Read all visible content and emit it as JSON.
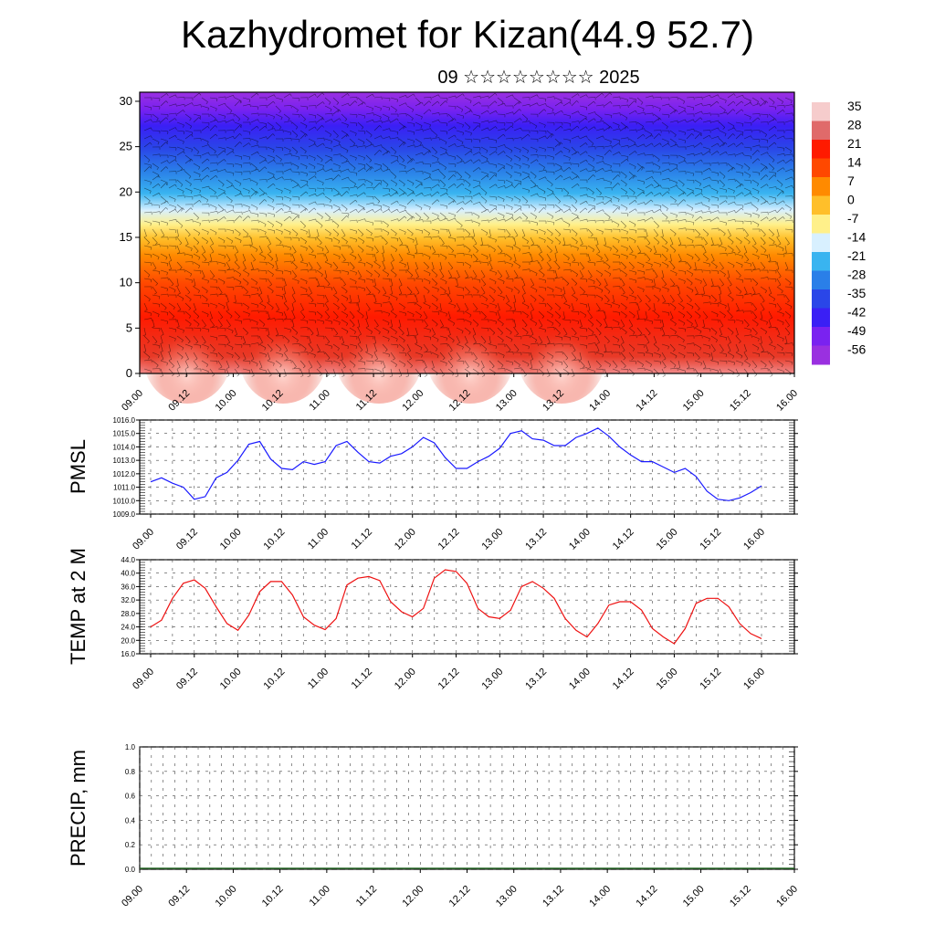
{
  "title": "Kazhydromet for Kizan(44.9 52.7)",
  "subtitle": "09 ☆☆☆☆☆☆☆☆ 2025",
  "x_tick_labels": [
    "09.00",
    "09.12",
    "10.00",
    "10.12",
    "11.00",
    "11.12",
    "12.00",
    "12.12",
    "13.00",
    "13.12",
    "14.00",
    "14.12",
    "15.00",
    "15.12",
    "16.00"
  ],
  "colorbar": {
    "labels": [
      "35",
      "28",
      "21",
      "14",
      "7",
      "0",
      "-7",
      "-14",
      "-21",
      "-28",
      "-35",
      "-42",
      "-49",
      "-56"
    ],
    "colors": [
      "#f6cccc",
      "#e06a6a",
      "#ff1a00",
      "#ff4800",
      "#ff8a00",
      "#ffbf2a",
      "#fff08a",
      "#d8f0ff",
      "#39b4f0",
      "#2a7fe8",
      "#2a46e8",
      "#3a1ff5",
      "#7a22f0",
      "#9a30e0"
    ]
  },
  "chart_data": [
    {
      "type": "heatmap",
      "title": "",
      "xlabel": "",
      "ylabel": "",
      "ylim": [
        0,
        31
      ],
      "y_ticks": [
        "0",
        "5",
        "10",
        "15",
        "20",
        "25",
        "30"
      ],
      "categories": [
        "09.00",
        "09.12",
        "10.00",
        "10.12",
        "11.00",
        "11.12",
        "12.00",
        "12.12",
        "13.00",
        "13.12",
        "14.00",
        "14.12",
        "15.00",
        "15.12",
        "16.00"
      ],
      "levels": [
        0,
        5,
        10,
        15,
        20,
        25,
        30
      ],
      "values_by_level": [
        [
          32,
          28,
          30
        ],
        [
          20,
          15,
          20
        ],
        [
          5,
          0,
          5
        ],
        [
          -10,
          -14,
          -10
        ],
        [
          -40,
          -35,
          -42
        ],
        [
          -56,
          -56,
          -56
        ],
        [
          -49,
          -49,
          -49
        ]
      ],
      "note_wind": "wind barbs overlay"
    },
    {
      "type": "line",
      "ylabel": "PMSL",
      "ylim": [
        1009.0,
        1016.0
      ],
      "y_ticks": [
        "1009.0",
        "1010.0",
        "1011.0",
        "1012.0",
        "1013.0",
        "1014.0",
        "1015.0",
        "1016.0"
      ],
      "x": [
        "09.00",
        "09.03",
        "09.06",
        "09.09",
        "09.12",
        "09.15",
        "09.18",
        "09.21",
        "10.00",
        "10.03",
        "10.06",
        "10.09",
        "10.12",
        "10.15",
        "10.18",
        "10.21",
        "11.00",
        "11.03",
        "11.06",
        "11.09",
        "11.12",
        "11.15",
        "11.18",
        "11.21",
        "12.00",
        "12.03",
        "12.06",
        "12.09",
        "12.12",
        "12.15",
        "12.18",
        "12.21",
        "13.00",
        "13.03",
        "13.06",
        "13.09",
        "13.12",
        "13.15",
        "13.18",
        "13.21",
        "14.00",
        "14.03",
        "14.06",
        "14.09",
        "14.12",
        "14.15",
        "14.18",
        "14.21",
        "15.00",
        "15.03",
        "15.06",
        "15.09",
        "15.12",
        "15.15",
        "15.18",
        "15.21",
        "16.00"
      ],
      "series": [
        {
          "color": "#1a1aff",
          "values": [
            1011.4,
            1011.7,
            1011.3,
            1011.0,
            1010.1,
            1010.3,
            1011.7,
            1012.1,
            1013.0,
            1014.2,
            1014.4,
            1013.1,
            1012.4,
            1012.3,
            1012.9,
            1012.7,
            1012.9,
            1014.1,
            1014.4,
            1013.6,
            1012.9,
            1012.8,
            1013.3,
            1013.5,
            1014.0,
            1014.7,
            1014.3,
            1013.2,
            1012.4,
            1012.4,
            1012.9,
            1013.3,
            1013.9,
            1015.0,
            1015.2,
            1014.6,
            1014.5,
            1014.1,
            1014.1,
            1014.7,
            1015.0,
            1015.4,
            1014.8,
            1014.0,
            1013.4,
            1012.9,
            1012.9,
            1012.5,
            1012.1,
            1012.4,
            1011.8,
            1010.7,
            1010.1,
            1010.0,
            1010.2,
            1010.6,
            1011.1
          ]
        }
      ]
    },
    {
      "type": "line",
      "ylabel": "TEMP at 2 M",
      "ylim": [
        16.0,
        44.0
      ],
      "y_ticks": [
        "16.0",
        "20.0",
        "24.0",
        "28.0",
        "32.0",
        "36.0",
        "40.0",
        "44.0"
      ],
      "x": [
        "09.00",
        "09.03",
        "09.06",
        "09.09",
        "09.12",
        "09.15",
        "09.18",
        "09.21",
        "10.00",
        "10.03",
        "10.06",
        "10.09",
        "10.12",
        "10.15",
        "10.18",
        "10.21",
        "11.00",
        "11.03",
        "11.06",
        "11.09",
        "11.12",
        "11.15",
        "11.18",
        "11.21",
        "12.00",
        "12.03",
        "12.06",
        "12.09",
        "12.12",
        "12.15",
        "12.18",
        "12.21",
        "13.00",
        "13.03",
        "13.06",
        "13.09",
        "13.12",
        "13.15",
        "13.18",
        "13.21",
        "14.00",
        "14.03",
        "14.06",
        "14.09",
        "14.12",
        "14.15",
        "14.18",
        "14.21",
        "15.00",
        "15.03",
        "15.06",
        "15.09",
        "15.12",
        "15.15",
        "15.18",
        "15.21",
        "16.00"
      ],
      "series": [
        {
          "color": "#ee1111",
          "values": [
            24.0,
            26.0,
            32.5,
            37.0,
            38.0,
            35.5,
            30.0,
            25.0,
            23.0,
            27.5,
            34.5,
            37.5,
            37.5,
            33.5,
            27.0,
            24.5,
            23.2,
            26.5,
            36.5,
            38.5,
            39.0,
            37.8,
            31.5,
            28.5,
            27.0,
            29.5,
            38.5,
            41.0,
            40.5,
            37.0,
            29.5,
            27.0,
            26.5,
            29.0,
            36.0,
            37.5,
            35.5,
            32.5,
            26.5,
            23.0,
            21.0,
            25.0,
            30.5,
            31.5,
            31.5,
            29.0,
            23.5,
            21.0,
            19.0,
            23.5,
            31.0,
            32.5,
            32.5,
            30.0,
            25.0,
            22.0,
            20.5
          ]
        }
      ]
    },
    {
      "type": "bar",
      "ylabel": "PRECIP, mm",
      "ylim": [
        0.0,
        1.0
      ],
      "y_ticks": [
        "0.0",
        "0.2",
        "0.4",
        "0.6",
        "0.8",
        "1.0"
      ],
      "categories": [
        "09.00",
        "09.12",
        "10.00",
        "10.12",
        "11.00",
        "11.12",
        "12.00",
        "12.12",
        "13.00",
        "13.12",
        "14.00",
        "14.12",
        "15.00",
        "15.12",
        "16.00"
      ],
      "values": [
        0,
        0,
        0,
        0,
        0,
        0,
        0,
        0,
        0,
        0,
        0,
        0,
        0,
        0,
        0
      ]
    }
  ]
}
